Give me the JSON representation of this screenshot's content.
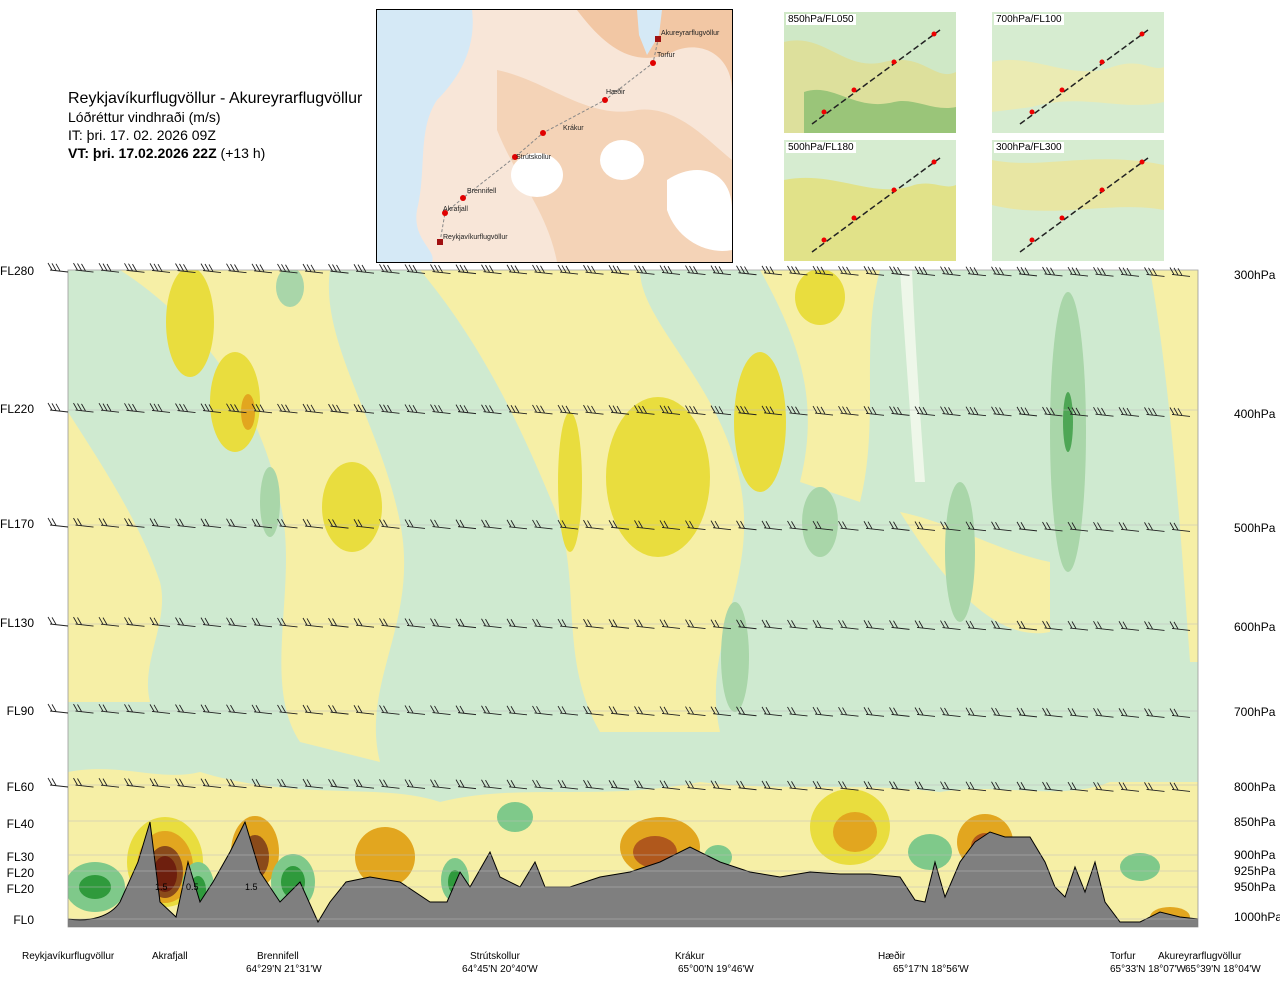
{
  "header": {
    "route": "Reykjavíkurflugvöllur - Akureyrarflugvöllur",
    "parameter": "Lóðréttur vindhraði (m/s)",
    "issue_time": "IT: þri. 17. 02. 2026 09Z",
    "valid_time": "VT: þri. 17.02.2026 22Z",
    "lead": "(+13 h)"
  },
  "map": {
    "places": [
      {
        "name": "Akureyrarflugvöllur"
      },
      {
        "name": "Torfur"
      },
      {
        "name": "Hæðir"
      },
      {
        "name": "Krákur"
      },
      {
        "name": "Strútskollur"
      },
      {
        "name": "Brennifell"
      },
      {
        "name": "Akrafjall"
      },
      {
        "name": "Reykjavíkurflugvöllur"
      }
    ]
  },
  "mini_maps": [
    {
      "label": "850hPa/FL050"
    },
    {
      "label": "700hPa/FL100"
    },
    {
      "label": "500hPa/FL180"
    },
    {
      "label": "300hPa/FL300"
    }
  ],
  "levels": [
    {
      "fl": "FL280",
      "hpa": "300hPa"
    },
    {
      "fl": "FL220",
      "hpa": "400hPa"
    },
    {
      "fl": "FL170",
      "hpa": "500hPa"
    },
    {
      "fl": "FL130",
      "hpa": "600hPa"
    },
    {
      "fl": "FL90",
      "hpa": "700hPa"
    },
    {
      "fl": "FL60",
      "hpa": "800hPa"
    },
    {
      "fl": "FL40",
      "hpa": "850hPa"
    },
    {
      "fl": "FL30",
      "hpa": "900hPa"
    },
    {
      "fl": "FL20",
      "hpa": "925hPa"
    },
    {
      "fl": "FL20",
      "hpa": "950hPa"
    },
    {
      "fl": "FL0",
      "hpa": "1000hPa"
    }
  ],
  "stations": [
    {
      "name": "Reykjavíkurflugvöllur",
      "coord": ""
    },
    {
      "name": "Akrafjall",
      "coord": ""
    },
    {
      "name": "Brennifell",
      "coord": "64°29'N 21°31'W"
    },
    {
      "name": "Strútskollur",
      "coord": "64°45'N 20°40'W"
    },
    {
      "name": "Krákur",
      "coord": "65°00'N 19°46'W"
    },
    {
      "name": "Hæðir",
      "coord": "65°17'N 18°56'W"
    },
    {
      "name": "Torfur",
      "coord": "65°33'N 18°07'W"
    },
    {
      "name": "Akureyrarflugvöllur",
      "coord": "65°39'N 18°04'W"
    }
  ],
  "chart_data": {
    "type": "heatmap",
    "title": "Lóðréttur vindhraði (m/s)",
    "x_stations": [
      "Reykjavíkurflugvöllur",
      "Akrafjall",
      "Brennifell",
      "Strútskollur",
      "Krákur",
      "Hæðir",
      "Torfur",
      "Akureyrarflugvöllur"
    ],
    "y_levels_hpa": [
      300,
      400,
      500,
      600,
      700,
      800,
      850,
      900,
      925,
      950,
      1000
    ],
    "contour_labels": [
      "1.5",
      "0.5",
      "1.5"
    ],
    "colors": {
      "strong_down": "#2f9a3c",
      "down": "#7fc98a",
      "weak_down": "#cfe9cc",
      "neutral": "#eef7e9",
      "weak_up": "#f7f0a8",
      "up": "#e8dc3a",
      "strong_up": "#e0a020",
      "max_up": "#7a2a10",
      "terrain": "#7f7f7f"
    }
  }
}
